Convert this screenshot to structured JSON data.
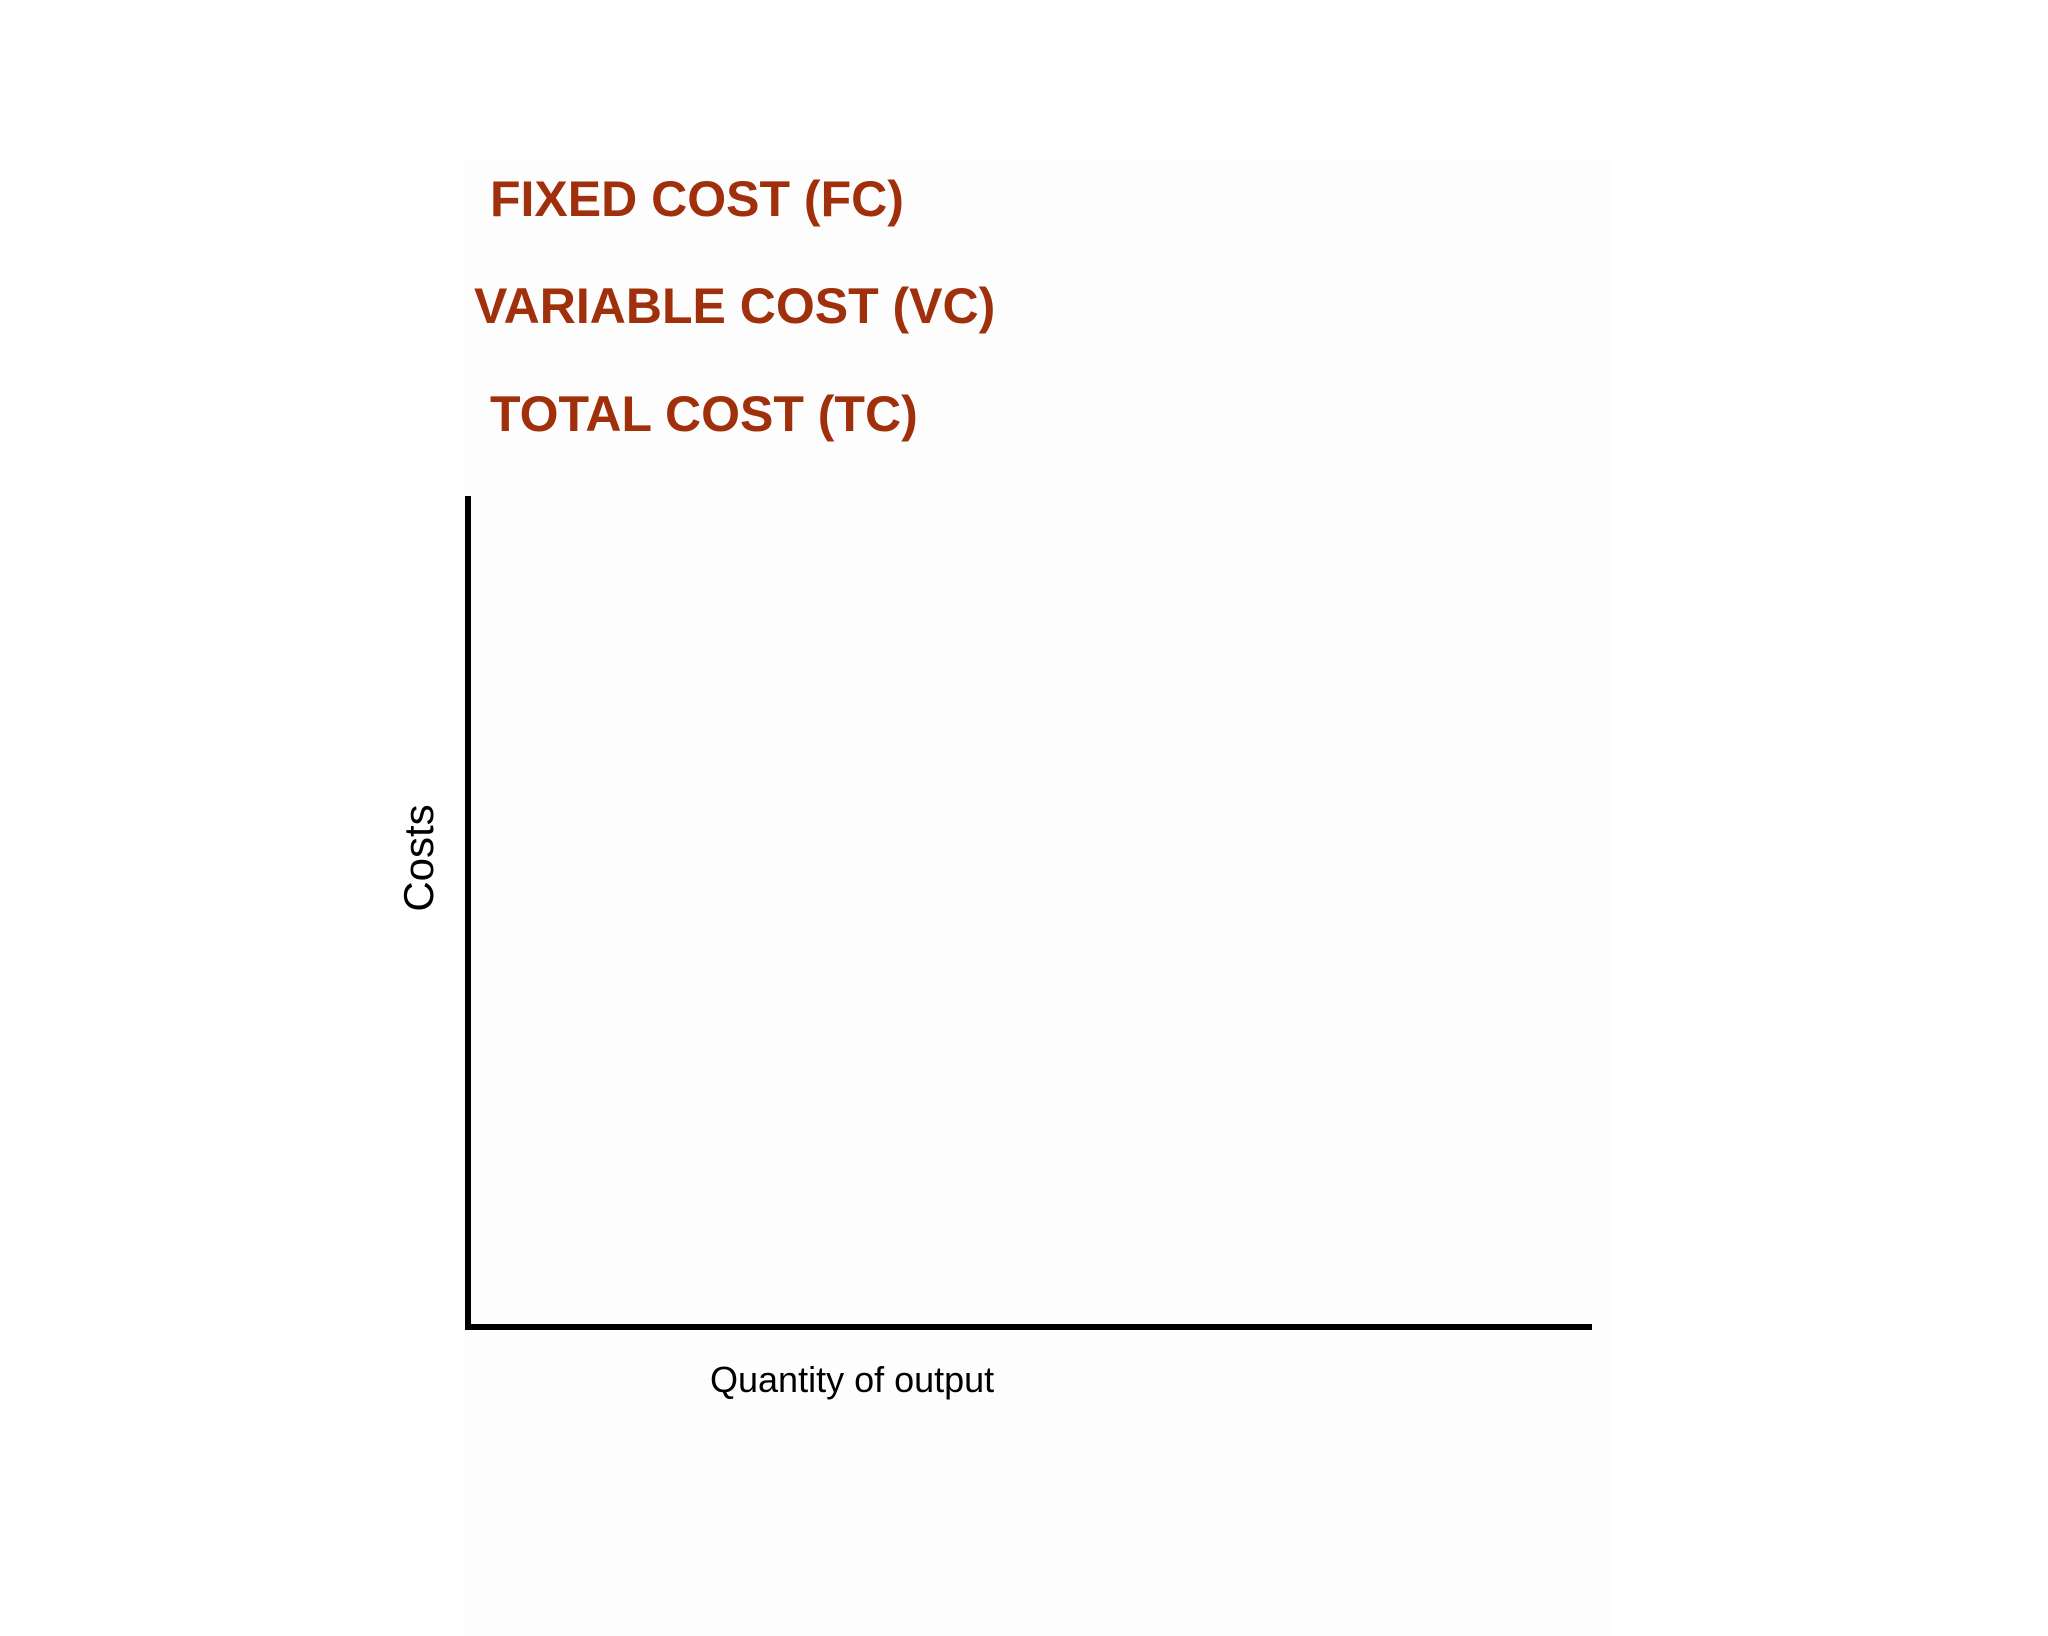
{
  "chart_data": {
    "type": "line",
    "title": "",
    "xlabel": "Quantity of output",
    "ylabel": "Costs",
    "legend": [
      "FIXED COST (FC)",
      "VARIABLE COST (VC)",
      "TOTAL COST (TC)"
    ],
    "legend_color": "#a0300c",
    "series": [],
    "grid": false,
    "ticks": false,
    "legend_placement": "top-left"
  }
}
